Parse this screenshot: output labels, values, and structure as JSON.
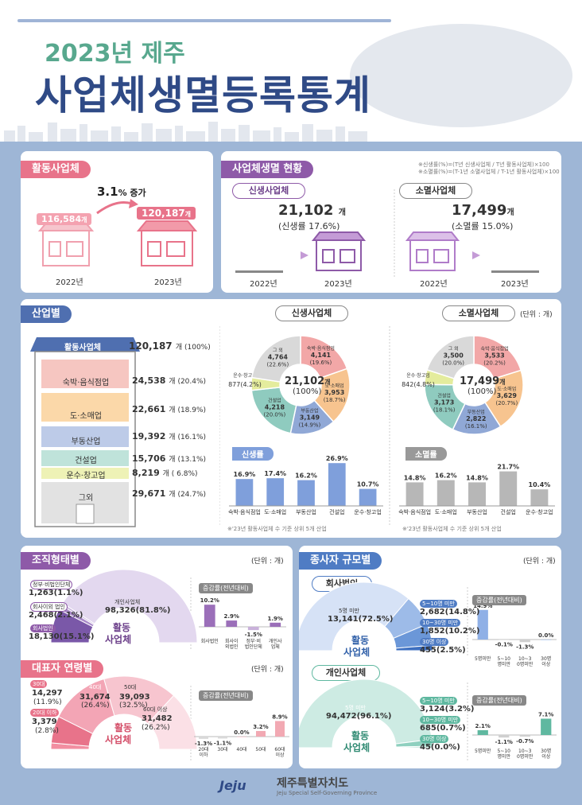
{
  "header": {
    "year_title": "2023년 제주",
    "main_title": "사업체생멸등록통계"
  },
  "active": {
    "tag": "활동사업체",
    "increase_value": "3.1",
    "increase_unit": "% 증가",
    "v2022": "116,584",
    "v2023": "120,187",
    "unit": "개",
    "y2022": "2022년",
    "y2023": "2023년"
  },
  "birth_death": {
    "tag": "사업체생멸 현황",
    "note1": "※신생률(%)=(T년 신생사업체 / T년 활동사업체)×100",
    "note2": "※소멸률(%)=(T-1년 소멸사업체 / T-1년 활동사업체)×100",
    "birth_label": "신생사업체",
    "birth_value": "21,102",
    "birth_unit": "개",
    "birth_rate": "(신생률 17.6%)",
    "death_label": "소멸사업체",
    "death_value": "17,499",
    "death_unit": "개",
    "death_rate": "(소멸률 15.0%)",
    "y2022": "2022년",
    "y2023": "2023년"
  },
  "industry": {
    "tag": "산업별",
    "unit_note": "(단위 : 개)",
    "rows": [
      {
        "label": "활동사업체",
        "value": "120,187",
        "pct": "개 (100%)"
      },
      {
        "label": "숙박·음식점업",
        "value": "24,538",
        "pct": "개 (20.4%)"
      },
      {
        "label": "도·소매업",
        "value": "22,661",
        "pct": "개 (18.9%)"
      },
      {
        "label": "부동산업",
        "value": "19,392",
        "pct": "개 (16.1%)"
      },
      {
        "label": "건설업",
        "value": "15,706",
        "pct": "개 (13.1%)"
      },
      {
        "label": "운수·창고업",
        "value": "8,219",
        "pct": "개 ( 6.8%)"
      },
      {
        "label": "그외",
        "value": "29,671",
        "pct": "개 (24.7%)"
      }
    ],
    "birth_pill": "신생사업체",
    "death_pill": "소멸사업체",
    "birth_center": "21,102",
    "birth_center_unit": "개",
    "birth_center_pct": "(100%)",
    "death_center": "17,499",
    "death_center_unit": "개",
    "death_center_pct": "(100%)",
    "birth_rate_tag": "신생률",
    "death_rate_tag": "소멸률",
    "foot1": "※'23년 활동사업체 수 기준 상위 5개 산업",
    "foot2": "※'23년 활동사업체 수 기준 상위 5개 산업"
  },
  "org": {
    "tag": "조직형태별",
    "unit_note": "(단위 : 개)",
    "center": "활동\n사업체",
    "center1": "활동",
    "center2": "사업체",
    "change_tag": "증감률(전년대비)",
    "l1": "정부·비법인단체",
    "v1": "1,263(1.1%)",
    "l2": "회사이외 법인",
    "v2": "2,468(2.1%)",
    "l3": "회사법인",
    "v3": "18,130(15.1%)",
    "l4": "개인사업체",
    "v4": "98,326(81.8%)"
  },
  "age": {
    "tag": "대표자 연령별",
    "unit_note": "(단위 : 개)",
    "center1": "활동",
    "center2": "사업체",
    "change_tag": "증감률(전년대비)",
    "l30": "30대",
    "v30": "14,297",
    "p30": "(11.9%)",
    "l20": "20대 이하",
    "v20": "3,379",
    "p20": "(2.8%)",
    "l40": "40대",
    "v40": "31,674",
    "p40": "(26.4%)",
    "l50": "50대",
    "v50": "39,093",
    "p50": "(32.5%)",
    "l60": "60대 이상",
    "v60": "31,482",
    "p60": "(26.2%)"
  },
  "employee": {
    "tag": "종사자 규모별",
    "unit_note": "(단위 : 개)",
    "corp_pill": "회사법인",
    "indiv_pill": "개인사업체",
    "change_tag": "증감률(전년대비)",
    "center1": "활동",
    "center2": "사업체",
    "c_lt5": "5명 미만",
    "c_lt5_v": "13,141(72.5%)",
    "c_5_10": "5~10명 미만",
    "c_5_10_v": "2,682(14.8%)",
    "c_10_30": "10~30명 미만",
    "c_10_30_v": "1,852(10.2%)",
    "c_30": "30명 이상",
    "c_30_v": "455(2.5%)",
    "i_lt5": "5명 미만",
    "i_lt5_v": "94,472(96.1%)",
    "i_5_10": "5~10명 미만",
    "i_5_10_v": "3,124(3.2%)",
    "i_10_30": "10~30명 미만",
    "i_10_30_v": "685(0.7%)",
    "i_30": "30명 이상",
    "i_30_v": "45(0.0%)"
  },
  "footer": {
    "logo": "Jeju",
    "org_name": "제주특별자치도",
    "org_en": "Jeju Special Self-Governing Province"
  },
  "colors": {
    "navy": "#2f4a86",
    "pink": "#e8738a",
    "purple": "#8e5aa8",
    "blue": "#4f7cc4",
    "gray": "#999999"
  },
  "chart_data": [
    {
      "type": "pie",
      "title": "신생사업체",
      "categories": [
        "숙박·음식점업",
        "도·소매업",
        "부동산업",
        "건설업",
        "운수·창고업",
        "그 외"
      ],
      "values": [
        4141,
        3953,
        3149,
        4218,
        877,
        4764
      ],
      "labels": [
        "4,141",
        "3,953",
        "3,149",
        "4,218",
        "877",
        "4,764"
      ],
      "pcts": [
        "(19.6%)",
        "(18.7%)",
        "(14.9%)",
        "(20.0%)",
        "(4.2%)",
        "(22.6%)"
      ],
      "colors": [
        "#f2a7a7",
        "#f7c48f",
        "#90a8d6",
        "#8fcbbf",
        "#e4ec9d",
        "#d9d9d9"
      ]
    },
    {
      "type": "pie",
      "title": "소멸사업체",
      "categories": [
        "숙박·음식점업",
        "도·소매업",
        "부동산업",
        "건설업",
        "운수·창고업",
        "그 외"
      ],
      "values": [
        3533,
        3629,
        2822,
        3173,
        842,
        3500
      ],
      "labels": [
        "3,533",
        "3,629",
        "2,822",
        "3,173",
        "842",
        "3,500"
      ],
      "pcts": [
        "(20.2%)",
        "(20.7%)",
        "(16.1%)",
        "(18.1%)",
        "(4.8%)",
        "(20.0%)"
      ],
      "colors": [
        "#f2a7a7",
        "#f7c48f",
        "#90a8d6",
        "#8fcbbf",
        "#e4ec9d",
        "#d9d9d9"
      ]
    },
    {
      "type": "bar",
      "title": "신생률",
      "categories": [
        "숙박·음식점업",
        "도·소매업",
        "부동산업",
        "건설업",
        "운수·창고업"
      ],
      "values": [
        16.9,
        17.4,
        16.2,
        26.9,
        10.7
      ],
      "color": "#7f9fdb"
    },
    {
      "type": "bar",
      "title": "소멸률",
      "categories": [
        "숙박·음식점업",
        "도·소매업",
        "부동산업",
        "건설업",
        "운수·창고업"
      ],
      "values": [
        14.8,
        16.2,
        14.8,
        21.7,
        10.4
      ],
      "color": "#b7b7b7"
    },
    {
      "type": "bar",
      "title": "증감률(전년대비)",
      "categories": [
        "회사법인",
        "회사이외법인",
        "정부·비법인단체",
        "개인사업체"
      ],
      "values": [
        10.2,
        2.9,
        -1.5,
        1.9
      ],
      "color": "#8e5aa8"
    },
    {
      "type": "bar",
      "title": "증감률(전년대비)",
      "categories": [
        "20대이하",
        "30대",
        "40대",
        "50대",
        "60대이상"
      ],
      "values": [
        -1.3,
        -1.1,
        0.0,
        3.2,
        8.9
      ],
      "color": "#f2a9b3"
    },
    {
      "type": "bar",
      "title": "증감률(전년대비)",
      "categories": [
        "5명미만",
        "5~10명미만",
        "10~30명미만",
        "30명이상"
      ],
      "values": [
        14.9,
        -0.1,
        -1.3,
        0.0
      ],
      "color": "#8fb0e6"
    },
    {
      "type": "bar",
      "title": "증감률(전년대비)",
      "categories": [
        "5명미만",
        "5~10명미만",
        "10~30명미만",
        "30명이상"
      ],
      "values": [
        2.1,
        -1.1,
        -0.7,
        7.1
      ],
      "color": "#5fb8a0"
    }
  ]
}
